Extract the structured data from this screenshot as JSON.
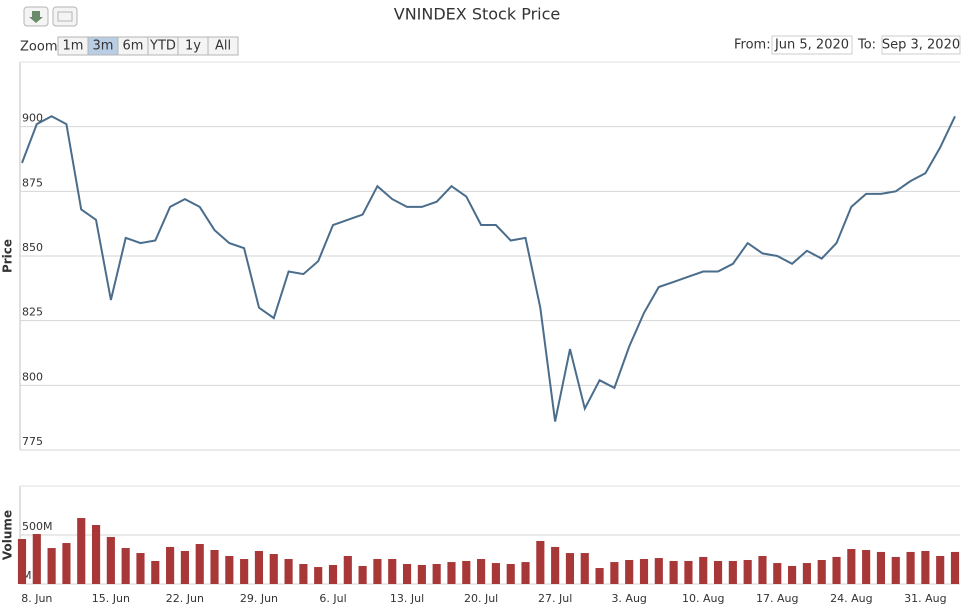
{
  "toolbar": {
    "zoom_label": "Zoom",
    "zoom_buttons": [
      "1m",
      "3m",
      "6m",
      "YTD",
      "1y",
      "All"
    ],
    "zoom_selected": "3m",
    "from_label": "From:",
    "from_value": "Jun 5, 2020",
    "to_label": "To:",
    "to_value": "Sep 3, 2020"
  },
  "chart_data": {
    "type": "stock",
    "title": "VNINDEX Stock Price",
    "categories": [
      null,
      "8. Jun",
      null,
      null,
      null,
      null,
      "15. Jun",
      null,
      null,
      null,
      null,
      "22. Jun",
      null,
      null,
      null,
      null,
      "29. Jun",
      null,
      null,
      null,
      null,
      "6. Jul",
      null,
      null,
      null,
      null,
      "13. Jul",
      null,
      null,
      null,
      null,
      "20. Jul",
      null,
      null,
      null,
      null,
      "27. Jul",
      null,
      null,
      null,
      null,
      "3. Aug",
      null,
      null,
      null,
      null,
      "10. Aug",
      null,
      null,
      null,
      null,
      "17. Aug",
      null,
      null,
      null,
      null,
      "24. Aug",
      null,
      null,
      null,
      null,
      "31. Aug",
      null,
      null
    ],
    "series": [
      {
        "name": "Price",
        "color": "#4a6d8c",
        "values": [
          886,
          901,
          904,
          901,
          868,
          864,
          833,
          857,
          855,
          856,
          869,
          872,
          869,
          860,
          855,
          853,
          830,
          826,
          844,
          843,
          848,
          862,
          864,
          866,
          877,
          872,
          869,
          869,
          871,
          877,
          873,
          862,
          862,
          856,
          857,
          830,
          786,
          814,
          791,
          802,
          799,
          815,
          828,
          838,
          840,
          842,
          844,
          844,
          847,
          855,
          851,
          850,
          847,
          852,
          849,
          855,
          869,
          874,
          874,
          875,
          879,
          882,
          892,
          904
        ]
      },
      {
        "name": "Volume",
        "color": "#a83838",
        "axis": "y2",
        "values": [
          459000000,
          510000000,
          367000000,
          418000000,
          673000000,
          602000000,
          480000000,
          367000000,
          316000000,
          235000000,
          378000000,
          337000000,
          408000000,
          347000000,
          286000000,
          255000000,
          337000000,
          306000000,
          255000000,
          204000000,
          173000000,
          194000000,
          286000000,
          184000000,
          255000000,
          255000000,
          204000000,
          194000000,
          204000000,
          224000000,
          235000000,
          255000000,
          214000000,
          204000000,
          224000000,
          439000000,
          378000000,
          316000000,
          316000000,
          163000000,
          224000000,
          245000000,
          255000000,
          265000000,
          235000000,
          235000000,
          276000000,
          235000000,
          235000000,
          245000000,
          286000000,
          214000000,
          184000000,
          214000000,
          245000000,
          276000000,
          357000000,
          347000000,
          327000000,
          276000000,
          327000000,
          337000000,
          286000000,
          327000000
        ]
      }
    ],
    "ylim": [
      775,
      925
    ],
    "yticks": [
      775,
      800,
      825,
      850,
      875,
      900
    ],
    "y2lim": [
      0,
      1000000000
    ],
    "y2ticks": [
      {
        "value": 0,
        "label": "M"
      },
      {
        "value": 500000000,
        "label": "500M"
      }
    ],
    "grid": true
  }
}
